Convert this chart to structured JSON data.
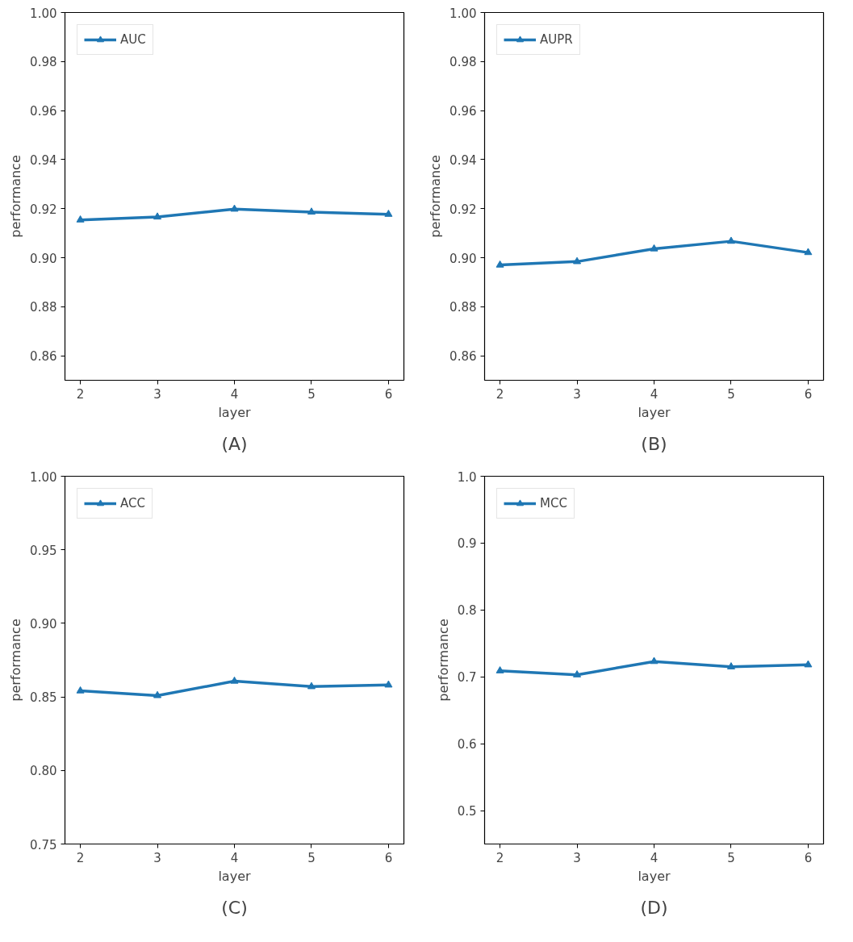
{
  "chart_data": [
    {
      "type": "line",
      "x": [
        2,
        3,
        4,
        5,
        6
      ],
      "xlim": [
        1.8,
        6.2
      ],
      "xticks": [
        2,
        3,
        4,
        5,
        6
      ],
      "ylim": [
        0.85,
        1.0
      ],
      "yticks": [
        {
          "value": 0.86,
          "label": "0.86"
        },
        {
          "value": 0.88,
          "label": "0.88"
        },
        {
          "value": 0.9,
          "label": "0.90"
        },
        {
          "value": 0.92,
          "label": "0.92"
        },
        {
          "value": 0.94,
          "label": "0.94"
        },
        {
          "value": 0.96,
          "label": "0.96"
        },
        {
          "value": 0.98,
          "label": "0.98"
        },
        {
          "value": 1.0,
          "label": "1.00"
        }
      ],
      "xlabel": "layer",
      "ylabel": "performance",
      "annotations": [
        "(A)"
      ],
      "legend": "top left",
      "grid": false,
      "marker": "triangle",
      "line_style": "solid",
      "series": [
        {
          "name": "AUC",
          "color": "#1f77b4",
          "values": [
            0.9154,
            0.9166,
            0.9198,
            0.9186,
            0.9177
          ]
        }
      ]
    },
    {
      "type": "line",
      "x": [
        2,
        3,
        4,
        5,
        6
      ],
      "xlim": [
        1.8,
        6.2
      ],
      "xticks": [
        2,
        3,
        4,
        5,
        6
      ],
      "ylim": [
        0.85,
        1.0
      ],
      "yticks": [
        {
          "value": 0.86,
          "label": "0.86"
        },
        {
          "value": 0.88,
          "label": "0.88"
        },
        {
          "value": 0.9,
          "label": "0.90"
        },
        {
          "value": 0.92,
          "label": "0.92"
        },
        {
          "value": 0.94,
          "label": "0.94"
        },
        {
          "value": 0.96,
          "label": "0.96"
        },
        {
          "value": 0.98,
          "label": "0.98"
        },
        {
          "value": 1.0,
          "label": "1.00"
        }
      ],
      "xlabel": "layer",
      "ylabel": "performance",
      "annotations": [
        "(B)"
      ],
      "legend": "top left",
      "grid": false,
      "marker": "triangle",
      "line_style": "solid",
      "series": [
        {
          "name": "AUPR",
          "color": "#1f77b4",
          "values": [
            0.897,
            0.8984,
            0.9036,
            0.9067,
            0.9021
          ]
        }
      ]
    },
    {
      "type": "line",
      "x": [
        2,
        3,
        4,
        5,
        6
      ],
      "xlim": [
        1.8,
        6.2
      ],
      "xticks": [
        2,
        3,
        4,
        5,
        6
      ],
      "ylim": [
        0.75,
        1.0
      ],
      "yticks": [
        {
          "value": 0.75,
          "label": "0.75"
        },
        {
          "value": 0.8,
          "label": "0.80"
        },
        {
          "value": 0.85,
          "label": "0.85"
        },
        {
          "value": 0.9,
          "label": "0.90"
        },
        {
          "value": 0.95,
          "label": "0.95"
        },
        {
          "value": 1.0,
          "label": "1.00"
        }
      ],
      "xlabel": "layer",
      "ylabel": "performance",
      "annotations": [
        "(C)"
      ],
      "legend": "top left",
      "grid": false,
      "marker": "triangle",
      "line_style": "solid",
      "series": [
        {
          "name": "ACC",
          "color": "#1f77b4",
          "values": [
            0.8541,
            0.8509,
            0.8607,
            0.857,
            0.8581
          ]
        }
      ]
    },
    {
      "type": "line",
      "x": [
        2,
        3,
        4,
        5,
        6
      ],
      "xlim": [
        1.8,
        6.2
      ],
      "xticks": [
        2,
        3,
        4,
        5,
        6
      ],
      "ylim": [
        0.45,
        1.0
      ],
      "yticks": [
        0.5,
        0.6,
        0.7,
        0.8,
        0.9,
        {
          "value": 1.0,
          "label": "1.0"
        }
      ],
      "xlabel": "layer",
      "ylabel": "performance",
      "annotations": [
        "(D)"
      ],
      "legend": "top left",
      "grid": false,
      "marker": "triangle",
      "line_style": "solid",
      "series": [
        {
          "name": "MCC",
          "color": "#1f77b4",
          "values": [
            0.709,
            0.703,
            0.723,
            0.715,
            0.718
          ]
        }
      ]
    }
  ]
}
